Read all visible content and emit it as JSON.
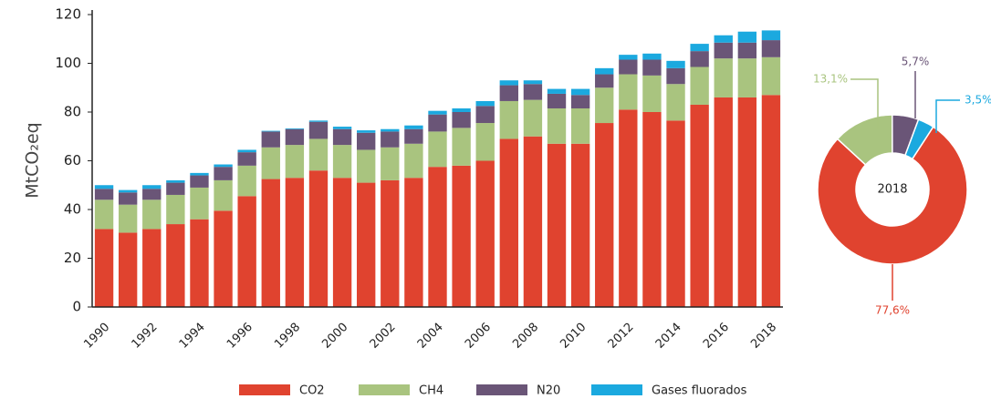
{
  "chart_data": [
    {
      "type": "stacked_bar",
      "y_label": "MtCO₂eq",
      "categories": [
        "1990",
        null,
        "1992",
        null,
        "1994",
        null,
        "1996",
        null,
        "1998",
        null,
        "2000",
        null,
        "2002",
        null,
        "2004",
        null,
        "2006",
        null,
        "2008",
        null,
        "2010",
        null,
        "2012",
        null,
        "2014",
        null,
        "2016",
        null,
        "2018"
      ],
      "series": [
        {
          "name": "CO2",
          "color": "#e0432f",
          "values": [
            32,
            30.5,
            32,
            34,
            36,
            39.5,
            45.5,
            52.5,
            53,
            56,
            53,
            51,
            52,
            53,
            57.5,
            58,
            60,
            69,
            70,
            67,
            67,
            75.5,
            81,
            80,
            76.5,
            83,
            86,
            86,
            87
          ]
        },
        {
          "name": "CH4",
          "color": "#a9c47f",
          "values": [
            12,
            11.5,
            12,
            12,
            13,
            12.5,
            12.5,
            13,
            13.5,
            13,
            13.5,
            13.5,
            13.5,
            14,
            14.5,
            15.5,
            15.5,
            15.5,
            15,
            14.5,
            14.5,
            14.5,
            14.5,
            15,
            15,
            15.5,
            16,
            16,
            15.5
          ]
        },
        {
          "name": "N20",
          "color": "#6a5577",
          "values": [
            4.5,
            5,
            4.5,
            5,
            5,
            5.5,
            5.5,
            6.5,
            6.5,
            7,
            6.5,
            7,
            6.5,
            6,
            7,
            6.5,
            7,
            6.5,
            6.5,
            6,
            5.5,
            5.5,
            6,
            6.5,
            6.5,
            6.5,
            6.5,
            6.5,
            7
          ]
        },
        {
          "name": "Gases fluorados",
          "color": "#1ba9df",
          "values": [
            1.5,
            1,
            1.5,
            1,
            1,
            1,
            1,
            0.3,
            0.3,
            0.5,
            1,
            1,
            1,
            1.5,
            1.5,
            1.5,
            2,
            2,
            1.5,
            2,
            2.5,
            2.5,
            2,
            2.5,
            3,
            3,
            3,
            4.5,
            4
          ]
        }
      ],
      "ylim": [
        0,
        120
      ],
      "yticks": [
        0,
        20,
        40,
        60,
        80,
        100,
        120
      ],
      "legend": "bottom"
    },
    {
      "type": "donut",
      "center_label": "2018",
      "values": [
        77.6,
        13.1,
        5.7,
        3.5
      ],
      "value_labels": [
        "77,6%",
        "13,1%",
        "5,7%",
        "3,5%"
      ],
      "colors": [
        "#e0432f",
        "#a9c47f",
        "#6a5577",
        "#1ba9df"
      ]
    }
  ]
}
